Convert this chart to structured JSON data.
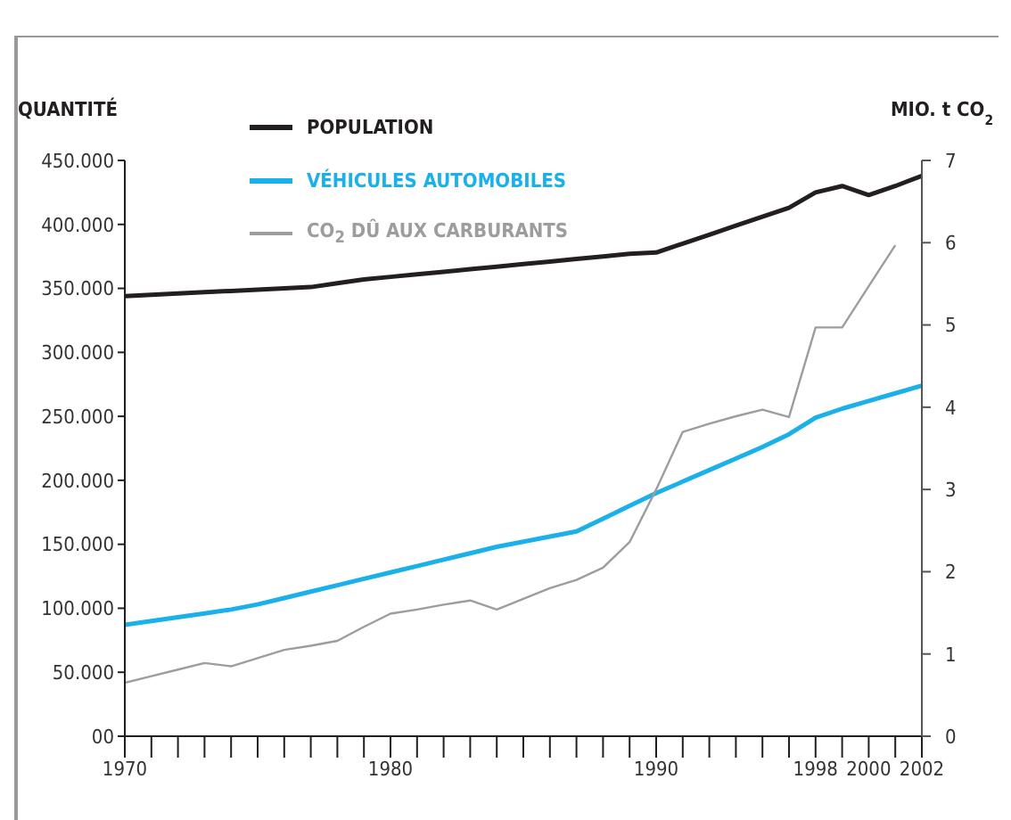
{
  "chart_data": {
    "type": "line",
    "ylabel": "QUANTITÉ",
    "y2label": "MIO. t CO$_{2}$",
    "categories": [
      "1970",
      null,
      null,
      null,
      null,
      null,
      null,
      null,
      null,
      null,
      "1980",
      null,
      null,
      null,
      null,
      null,
      null,
      null,
      null,
      null,
      "1990",
      null,
      null,
      null,
      null,
      null,
      "1998",
      null,
      "2000",
      null,
      "2002"
    ],
    "series": [
      {
        "name": "POPULATION",
        "color": "#231f20",
        "values": [
          344000,
          345000,
          346000,
          347000,
          348000,
          349000,
          350000,
          351000,
          354000,
          357000,
          359000,
          361000,
          363000,
          365000,
          367000,
          369000,
          371000,
          373000,
          375000,
          377000,
          378000,
          385000,
          392000,
          399000,
          406000,
          413000,
          425000,
          430000,
          423000,
          430000,
          438000
        ]
      },
      {
        "name": "VÉHICULES AUTOMOBILES",
        "color": "#1ab0ea",
        "values": [
          87000,
          90000,
          93000,
          96000,
          99000,
          103000,
          108000,
          113000,
          118000,
          123000,
          128000,
          133000,
          138000,
          143000,
          148000,
          152000,
          156000,
          160000,
          170000,
          180000,
          190000,
          199000,
          208000,
          217000,
          226000,
          236000,
          249000,
          256000,
          262000,
          268000,
          274000
        ]
      },
      {
        "name": "CO$_{2}$ DÛ AUX CARBURANTS",
        "color": "#9d9d9d",
        "axis": "y2",
        "values": [
          0.65,
          0.73,
          0.81,
          0.89,
          0.85,
          0.95,
          1.05,
          1.1,
          1.16,
          1.33,
          1.49,
          1.54,
          1.6,
          1.65,
          1.54,
          1.67,
          1.8,
          1.9,
          2.05,
          2.36,
          3.0,
          3.7,
          3.8,
          3.89,
          3.97,
          3.88,
          4.97,
          4.97,
          5.47,
          5.97,
          null
        ]
      }
    ],
    "ylim": [
      0,
      450000
    ],
    "yticks": [
      {
        "value": 0,
        "label": "00"
      },
      {
        "value": 50000,
        "label": "50.000"
      },
      {
        "value": 100000,
        "label": "100.000"
      },
      {
        "value": 150000,
        "label": "150.000"
      },
      {
        "value": 200000,
        "label": "200.000"
      },
      {
        "value": 250000,
        "label": "250.000"
      },
      {
        "value": 300000,
        "label": "300.000"
      },
      {
        "value": 350000,
        "label": "350.000"
      },
      {
        "value": 400000,
        "label": "400.000"
      },
      {
        "value": 450000,
        "label": "450.000"
      }
    ],
    "y2lim": [
      0,
      7
    ],
    "y2ticks": [
      0,
      1,
      2,
      3,
      4,
      5,
      6,
      7
    ],
    "legend": "top left",
    "marker": "none",
    "line_style": "solid"
  }
}
